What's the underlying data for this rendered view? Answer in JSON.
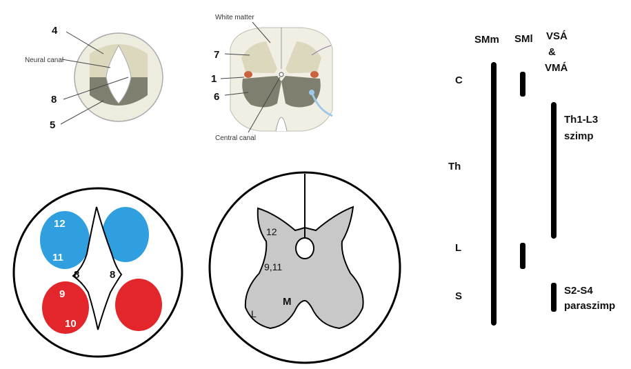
{
  "panel_top_left": {
    "labels": {
      "l4": "4",
      "neural_canal": "Neural canal",
      "l8": "8",
      "l5": "5"
    },
    "colors": {
      "alar": "#dcd8bd",
      "basal": "#7f7f6f",
      "ring": "#eeecdf"
    }
  },
  "panel_top_middle": {
    "labels": {
      "white_matter": "White matter",
      "l7": "7",
      "l1": "1",
      "l6": "6",
      "central_canal": "Central canal"
    },
    "colors": {
      "dorsal": "#dcd8bd",
      "ventral": "#7f7f6f",
      "lateral_horn": "#c9633f",
      "nerve": "#9ec9ea"
    }
  },
  "panel_bottom_left": {
    "labels": {
      "l12": "12",
      "l11": "11",
      "l8a": "8",
      "l8b": "8",
      "l9": "9",
      "l10": "10"
    },
    "colors": {
      "sensory": "#2f9fe0",
      "motor": "#e3262c"
    }
  },
  "panel_bottom_middle": {
    "labels": {
      "l12": "12",
      "l9_11": "9,11",
      "m": "M",
      "l": "L"
    },
    "colors": {
      "gray_matter": "#c8c8c8"
    }
  },
  "panel_right": {
    "headers": {
      "smm": "SMm",
      "sml": "SMl",
      "vsa": "VSÁ",
      "amp": "&",
      "vma": "VMÁ"
    },
    "segments": {
      "c": "C",
      "th": "Th",
      "l": "L",
      "s": "S"
    },
    "notes": {
      "symp_1": "Th1-L3",
      "symp_2": "szimp",
      "parasymp_1": "S2-S4",
      "parasymp_2": "paraszimp"
    }
  }
}
